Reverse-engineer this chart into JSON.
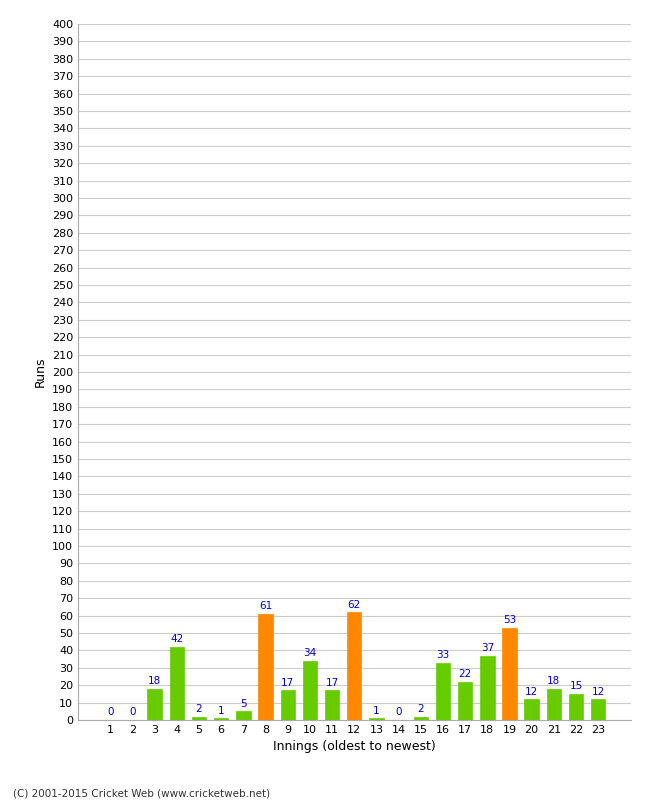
{
  "title": "",
  "xlabel": "Innings (oldest to newest)",
  "ylabel": "Runs",
  "categories": [
    1,
    2,
    3,
    4,
    5,
    6,
    7,
    8,
    9,
    10,
    11,
    12,
    13,
    14,
    15,
    16,
    17,
    18,
    19,
    20,
    21,
    22,
    23
  ],
  "values": [
    0,
    0,
    18,
    42,
    2,
    1,
    5,
    61,
    17,
    34,
    17,
    62,
    1,
    0,
    2,
    33,
    22,
    37,
    53,
    12,
    18,
    15,
    12
  ],
  "colors": [
    "#66cc00",
    "#66cc00",
    "#66cc00",
    "#66cc00",
    "#66cc00",
    "#66cc00",
    "#66cc00",
    "#ff8800",
    "#66cc00",
    "#66cc00",
    "#66cc00",
    "#ff8800",
    "#66cc00",
    "#66cc00",
    "#66cc00",
    "#66cc00",
    "#66cc00",
    "#66cc00",
    "#ff8800",
    "#66cc00",
    "#66cc00",
    "#66cc00",
    "#66cc00"
  ],
  "ylim": [
    0,
    400
  ],
  "yticks": [
    0,
    10,
    20,
    30,
    40,
    50,
    60,
    70,
    80,
    90,
    100,
    110,
    120,
    130,
    140,
    150,
    160,
    170,
    180,
    190,
    200,
    210,
    220,
    230,
    240,
    250,
    260,
    270,
    280,
    290,
    300,
    310,
    320,
    330,
    340,
    350,
    360,
    370,
    380,
    390,
    400
  ],
  "background_color": "#ffffff",
  "grid_color": "#cccccc",
  "label_color": "#0000cc",
  "footer": "(C) 2001-2015 Cricket Web (www.cricketweb.net)",
  "bar_width": 0.65
}
